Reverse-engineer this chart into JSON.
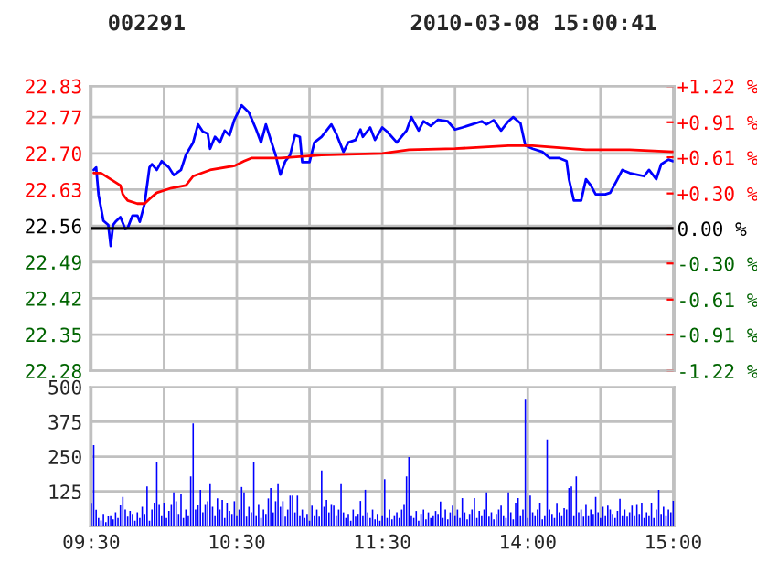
{
  "chart_data": [
    {
      "type": "line",
      "title": "002291",
      "subtitle": "2010-03-08 15:00:41",
      "tick_labels": "y",
      "grid": true,
      "categories": [
        null,
        null,
        null,
        null,
        null,
        null,
        null,
        null,
        null,
        null,
        null,
        null,
        null,
        null,
        null,
        null,
        null,
        null,
        null,
        null,
        null,
        null,
        null,
        null,
        null,
        null,
        null,
        null,
        null,
        null,
        null,
        null,
        null,
        null,
        null,
        null,
        null,
        null,
        null,
        null,
        null,
        null,
        null,
        null,
        null,
        null,
        null,
        null,
        null,
        null,
        null,
        null,
        null,
        null,
        null,
        null,
        null,
        null,
        null,
        null,
        null,
        null,
        null,
        null,
        null,
        null,
        null,
        null,
        null,
        null,
        null,
        null,
        null,
        null,
        null,
        null,
        null,
        null,
        null,
        null,
        null,
        null,
        null,
        null,
        null,
        null,
        null,
        null,
        null,
        null,
        null,
        null,
        null,
        null,
        null,
        null,
        null,
        null,
        null,
        null,
        null,
        null,
        null,
        null,
        null,
        null,
        null,
        null,
        null,
        null,
        null,
        null,
        null,
        null,
        null,
        null,
        null,
        null,
        null,
        null,
        null,
        null,
        null,
        null,
        null,
        null,
        null,
        null,
        null,
        null,
        null,
        null,
        null,
        null,
        null,
        null,
        null,
        null,
        null,
        null,
        null,
        null,
        null,
        null,
        null,
        null,
        null,
        null,
        null,
        null,
        null,
        null,
        null,
        null,
        null,
        null,
        null,
        null,
        null,
        null,
        null,
        null,
        null,
        null,
        null,
        null,
        null,
        null,
        null,
        null,
        null,
        null,
        null,
        null,
        null,
        null,
        null,
        null,
        null,
        null,
        null,
        null,
        null,
        null,
        null,
        null,
        null,
        null,
        null,
        null,
        null,
        null,
        null,
        null,
        null,
        null,
        null,
        null,
        null,
        null,
        null,
        null,
        null,
        null,
        null,
        null,
        null,
        null,
        null,
        null,
        null,
        null,
        null,
        null,
        null,
        null,
        null,
        null,
        null,
        null,
        null,
        null,
        null,
        null,
        null,
        null,
        null,
        null,
        null,
        null,
        null,
        null,
        null,
        null,
        null,
        null,
        null,
        null,
        null,
        null,
        null
      ],
      "ylim": [
        22.28,
        22.83
      ],
      "yticks": [
        {
          "value": 22.28,
          "label": "22.28"
        },
        {
          "value": 22.35,
          "label": "22.35"
        },
        {
          "value": 22.42,
          "label": "22.42"
        },
        {
          "value": 22.49,
          "label": "22.49"
        },
        {
          "value": 22.56,
          "label": "22.56"
        },
        {
          "value": 22.63,
          "label": "22.63"
        },
        {
          "value": 22.7,
          "label": "22.70"
        },
        {
          "value": 22.77,
          "label": "22.77"
        },
        {
          "value": 22.83,
          "label": "22.83"
        }
      ],
      "y2lim": [
        -1.22,
        1.22
      ],
      "y2ticks": [
        {
          "value": -1.22,
          "label": "-1.22 %"
        },
        {
          "value": -0.91,
          "label": "-0.91 %"
        },
        {
          "value": -0.61,
          "label": "-0.61 %"
        },
        {
          "value": -0.3,
          "label": "-0.30 %"
        },
        {
          "value": 0,
          "label": "0.00 %"
        },
        {
          "value": 0.3,
          "label": "+0.30 %"
        },
        {
          "value": 0.61,
          "label": "+0.61 %"
        },
        {
          "value": 0.91,
          "label": "+0.91 %"
        },
        {
          "value": 1.22,
          "label": "+1.22 %"
        }
      ],
      "ref_lines": [
        {
          "axis": "y2",
          "value": 0,
          "color": "#000000"
        }
      ],
      "series": [
        {
          "color": "#0000ff",
          "values": [
            null,
            22.668,
            22.673,
            22.62,
            null,
            22.57,
            null,
            22.562,
            22.521,
            22.562,
            22.568,
            null,
            22.577,
            null,
            22.554,
            22.556,
            null,
            22.58,
            null,
            22.58,
            22.568,
            null,
            22.603,
            null,
            22.673,
            22.679,
            null,
            22.668,
            null,
            22.685,
            null,
            null,
            22.673,
            null,
            22.658,
            null,
            null,
            22.668,
            null,
            22.697,
            null,
            null,
            22.721,
            null,
            22.756,
            null,
            22.742,
            null,
            22.738,
            22.709,
            null,
            22.732,
            null,
            22.721,
            null,
            22.744,
            null,
            22.735,
            null,
            22.765,
            null,
            null,
            22.793,
            null,
            null,
            22.779,
            null,
            null,
            22.746,
            null,
            22.721,
            null,
            22.756,
            null,
            22.726,
            null,
            22.697,
            null,
            22.659,
            null,
            22.685,
            null,
            22.697,
            null,
            22.735,
            null,
            22.732,
            22.683,
            null,
            null,
            22.683,
            null,
            22.721,
            null,
            null,
            22.732,
            null,
            null,
            null,
            22.756,
            null,
            22.738,
            null,
            null,
            22.703,
            null,
            22.721,
            null,
            null,
            22.726,
            null,
            22.746,
            22.732,
            null,
            null,
            22.75,
            null,
            22.726,
            null,
            null,
            22.75,
            null,
            22.742,
            null,
            null,
            null,
            22.721,
            null,
            null,
            null,
            22.744,
            null,
            22.77,
            null,
            null,
            22.744,
            null,
            22.762,
            null,
            null,
            22.753,
            null,
            null,
            22.765,
            null,
            null,
            null,
            22.762,
            null,
            null,
            22.746,
            null,
            null,
            22.75,
            null,
            null,
            null,
            22.756,
            null,
            null,
            null,
            22.762,
            null,
            22.756,
            null,
            null,
            22.764,
            null,
            null,
            22.744,
            null,
            null,
            22.762,
            null,
            22.77,
            null,
            null,
            22.758,
            null,
            22.715,
            null,
            null,
            22.709,
            null,
            null,
            null,
            22.703,
            null,
            null,
            22.691,
            null,
            null,
            null,
            22.691,
            null,
            null,
            22.685,
            22.65,
            null,
            22.609,
            null,
            null,
            22.609,
            null,
            22.65,
            null,
            22.638,
            null,
            22.621,
            null,
            null,
            null,
            22.621,
            null,
            22.624,
            null,
            null,
            22.65,
            null,
            22.668,
            null,
            null,
            22.662,
            null,
            null,
            null,
            null,
            null,
            22.656,
            null,
            22.668,
            null,
            null,
            22.65,
            null,
            22.679,
            null,
            null,
            22.688,
            null,
            22.685
          ]
        },
        {
          "color": "#ff0000",
          "values": [
            null,
            22.662,
            null,
            null,
            22.662,
            null,
            null,
            null,
            22.65,
            null,
            null,
            null,
            22.638,
            22.621,
            null,
            22.609,
            null,
            null,
            null,
            22.603,
            null,
            null,
            22.603,
            null,
            22.612,
            null,
            null,
            22.624,
            null,
            null,
            null,
            null,
            null,
            22.633,
            null,
            null,
            null,
            null,
            null,
            22.638,
            null,
            null,
            22.656,
            null,
            null,
            null,
            null,
            null,
            null,
            22.668,
            null,
            null,
            null,
            null,
            null,
            null,
            null,
            null,
            null,
            22.676,
            null,
            null,
            null,
            22.685,
            null,
            null,
            22.691,
            null,
            null,
            null,
            null,
            null,
            null,
            null,
            null,
            null,
            null,
            null,
            22.691,
            null,
            null,
            null,
            null,
            null,
            null,
            null,
            null,
            null,
            null,
            null,
            null,
            null,
            null,
            null,
            null,
            22.697,
            null,
            null,
            null,
            null,
            null,
            null,
            null,
            null,
            null,
            null,
            null,
            null,
            null,
            null,
            null,
            null,
            null,
            null,
            null,
            null,
            null,
            null,
            null,
            null,
            22.7,
            null,
            null,
            null,
            null,
            null,
            null,
            null,
            null,
            null,
            null,
            22.707,
            null,
            null,
            null,
            null,
            null,
            null,
            null,
            null,
            null,
            null,
            null,
            null,
            null,
            null,
            null,
            null,
            null,
            null,
            22.709,
            null,
            null,
            null,
            null,
            null,
            null,
            null,
            null,
            null,
            null,
            null,
            null,
            null,
            null,
            null,
            null,
            null,
            null,
            null,
            null,
            null,
            22.715,
            null,
            null,
            null,
            null,
            null,
            null,
            null,
            null,
            null,
            22.715,
            null,
            null,
            null,
            null,
            null,
            null,
            null,
            null,
            null,
            null,
            null,
            null,
            null,
            null,
            null,
            null,
            null,
            null,
            null,
            null,
            null,
            22.707,
            null,
            null,
            null,
            null,
            null,
            null,
            null,
            null,
            null,
            null,
            null,
            null,
            null,
            null,
            null,
            null,
            null,
            22.707,
            null,
            null,
            null,
            null,
            null,
            null,
            null,
            null,
            null,
            null,
            null,
            null,
            null,
            null,
            null,
            null,
            null,
            22.703
          ]
        }
      ]
    },
    {
      "type": "bar",
      "grid": true,
      "color": "#0000ff",
      "categories": [
        "09:30",
        null,
        null,
        null,
        null,
        null,
        null,
        null,
        null,
        null,
        null,
        null,
        null,
        null,
        null,
        null,
        null,
        null,
        null,
        null,
        null,
        null,
        null,
        null,
        null,
        null,
        null,
        null,
        null,
        null,
        null,
        null,
        null,
        null,
        null,
        null,
        null,
        null,
        null,
        null,
        null,
        null,
        null,
        null,
        null,
        null,
        null,
        null,
        null,
        null,
        null,
        null,
        null,
        null,
        null,
        null,
        null,
        null,
        null,
        null,
        "10:30",
        null,
        null,
        null,
        null,
        null,
        null,
        null,
        null,
        null,
        null,
        null,
        null,
        null,
        null,
        null,
        null,
        null,
        null,
        null,
        null,
        null,
        null,
        null,
        null,
        null,
        null,
        null,
        null,
        null,
        null,
        null,
        null,
        null,
        null,
        null,
        null,
        null,
        null,
        null,
        null,
        null,
        null,
        null,
        null,
        null,
        null,
        null,
        null,
        null,
        null,
        null,
        null,
        null,
        null,
        null,
        null,
        null,
        null,
        null,
        "11:30",
        null,
        null,
        null,
        null,
        null,
        null,
        null,
        null,
        null,
        null,
        null,
        null,
        null,
        null,
        null,
        null,
        null,
        null,
        null,
        null,
        null,
        null,
        null,
        null,
        null,
        null,
        null,
        null,
        null,
        null,
        null,
        null,
        null,
        null,
        null,
        null,
        null,
        null,
        null,
        null,
        null,
        null,
        null,
        null,
        null,
        null,
        null,
        null,
        null,
        null,
        null,
        null,
        null,
        null,
        null,
        null,
        null,
        null,
        null,
        "14:00",
        null,
        null,
        null,
        null,
        null,
        null,
        null,
        null,
        null,
        null,
        null,
        null,
        null,
        null,
        null,
        null,
        null,
        null,
        null,
        null,
        null,
        null,
        null,
        null,
        null,
        null,
        null,
        null,
        null,
        null,
        null,
        null,
        null,
        null,
        null,
        null,
        null,
        null,
        null,
        null,
        null,
        null,
        null,
        null,
        null,
        null,
        null,
        null,
        null,
        null,
        null,
        null,
        null,
        null,
        null,
        null,
        null,
        null,
        null,
        "15:00"
      ],
      "values": [
        84,
        291,
        59,
        30,
        21,
        45,
        15,
        38,
        40,
        25,
        50,
        30,
        78,
        105,
        60,
        35,
        55,
        45,
        20,
        50,
        30,
        70,
        45,
        143,
        20,
        60,
        85,
        232,
        80,
        40,
        85,
        30,
        55,
        80,
        122,
        90,
        45,
        116,
        30,
        60,
        40,
        179,
        369,
        60,
        75,
        131,
        50,
        80,
        90,
        154,
        70,
        40,
        100,
        60,
        95,
        30,
        85,
        55,
        45,
        90,
        40,
        60,
        141,
        122,
        35,
        70,
        50,
        232,
        40,
        80,
        30,
        60,
        45,
        100,
        137,
        50,
        90,
        154,
        70,
        90,
        35,
        60,
        110,
        110,
        50,
        110,
        40,
        60,
        30,
        45,
        20,
        74,
        40,
        60,
        35,
        200,
        70,
        95,
        50,
        80,
        74,
        40,
        60,
        154,
        50,
        30,
        45,
        20,
        60,
        35,
        45,
        91,
        40,
        131,
        50,
        30,
        60,
        25,
        45,
        20,
        40,
        169,
        30,
        60,
        25,
        40,
        50,
        30,
        60,
        80,
        179,
        249,
        40,
        30,
        55,
        20,
        45,
        60,
        25,
        50,
        30,
        40,
        55,
        45,
        89,
        30,
        60,
        25,
        50,
        74,
        40,
        60,
        30,
        101,
        50,
        25,
        45,
        60,
        101,
        30,
        55,
        40,
        60,
        122,
        35,
        50,
        25,
        45,
        60,
        74,
        40,
        30,
        122,
        50,
        25,
        85,
        101,
        40,
        60,
        454,
        30,
        110,
        50,
        40,
        60,
        85,
        25,
        40,
        312,
        60,
        45,
        30,
        84,
        50,
        40,
        65,
        60,
        137,
        143,
        40,
        179,
        50,
        60,
        35,
        80,
        40,
        60,
        45,
        105,
        50,
        30,
        70,
        40,
        74,
        60,
        45,
        30,
        55,
        99,
        40,
        60,
        35,
        50,
        74,
        40,
        80,
        45,
        85,
        30,
        50,
        40,
        85,
        30,
        60,
        131,
        45,
        70,
        40,
        60,
        50,
        91
      ],
      "ylim": [
        0,
        500
      ],
      "yticks": [
        125,
        250,
        375,
        500
      ]
    }
  ]
}
